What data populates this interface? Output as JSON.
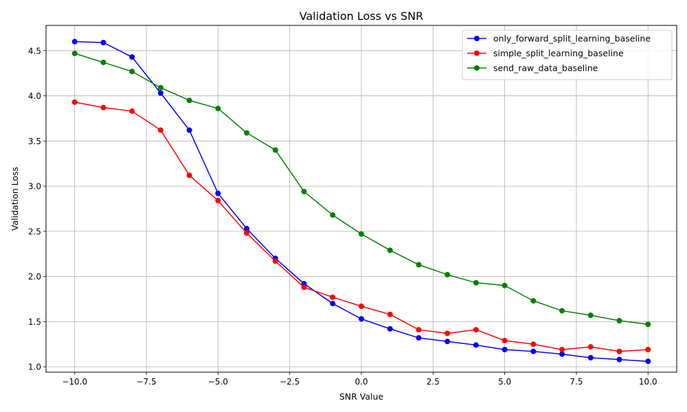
{
  "chart_data": {
    "type": "line",
    "title": "Validation Loss vs SNR",
    "xlabel": "SNR Value",
    "ylabel": "Validation Loss",
    "xlim": [
      -11,
      11
    ],
    "ylim": [
      0.94,
      4.78
    ],
    "xticks": [
      "−10.0",
      "−7.5",
      "−5.0",
      "−2.5",
      "0.0",
      "2.5",
      "5.0",
      "7.5",
      "10.0"
    ],
    "xtick_values": [
      -10,
      -7.5,
      -5,
      -2.5,
      0,
      2.5,
      5,
      7.5,
      10
    ],
    "yticks": [
      "1.0",
      "1.5",
      "2.0",
      "2.5",
      "3.0",
      "3.5",
      "4.0",
      "4.5"
    ],
    "ytick_values": [
      1.0,
      1.5,
      2.0,
      2.5,
      3.0,
      3.5,
      4.0,
      4.5
    ],
    "grid": true,
    "legend_position": "top-right",
    "x": [
      -10,
      -9,
      -8,
      -7,
      -6,
      -5,
      -4,
      -3,
      -2,
      -1,
      0,
      1,
      2,
      3,
      4,
      5,
      6,
      7,
      8,
      9,
      10
    ],
    "series": [
      {
        "name": "only_forward_split_learning_baseline",
        "color": "#0000ff",
        "values": [
          4.6,
          4.59,
          4.43,
          4.03,
          3.62,
          2.92,
          2.53,
          2.2,
          1.92,
          1.7,
          1.53,
          1.42,
          1.32,
          1.28,
          1.24,
          1.19,
          1.17,
          1.14,
          1.1,
          1.08,
          1.06
        ]
      },
      {
        "name": "simple_split_learning_baseline",
        "color": "#ff0000",
        "values": [
          3.93,
          3.87,
          3.83,
          3.62,
          3.12,
          2.84,
          2.48,
          2.17,
          1.88,
          1.77,
          1.67,
          1.58,
          1.41,
          1.37,
          1.41,
          1.29,
          1.25,
          1.19,
          1.22,
          1.17,
          1.19
        ]
      },
      {
        "name": "send_raw_data_baseline",
        "color": "#008000",
        "values": [
          4.47,
          4.37,
          4.27,
          4.09,
          3.95,
          3.86,
          3.59,
          3.4,
          2.94,
          2.68,
          2.47,
          2.29,
          2.13,
          2.02,
          1.93,
          1.9,
          1.73,
          1.62,
          1.57,
          1.51,
          1.47
        ]
      }
    ]
  }
}
